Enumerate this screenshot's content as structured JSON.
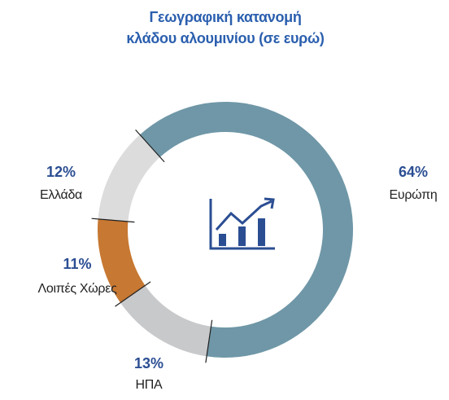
{
  "chart_data": {
    "type": "donut",
    "title": [
      "Γεωγραφική κατανομή",
      "κλάδου αλουμινίου (σε ευρώ)"
    ],
    "categories": [
      "Ευρώπη",
      "ΗΠΑ",
      "Λοιπές Χώρες",
      "Ελλάδα"
    ],
    "values": [
      64,
      13,
      11,
      12
    ],
    "value_labels": [
      "64%",
      "13%",
      "11%",
      "12%"
    ],
    "colors": [
      "#6f97a7",
      "#c8c9cb",
      "#c77832",
      "#dcdcdd"
    ]
  }
}
